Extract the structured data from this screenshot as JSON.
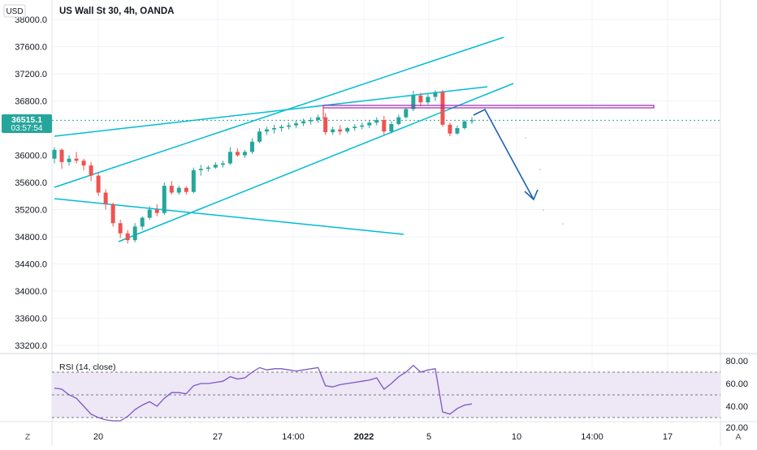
{
  "header": {
    "currency": "USD",
    "symbol_title": "US Wall St 30, 4h, OANDA"
  },
  "price_badge": {
    "price": "36515.1",
    "countdown": "03:57:54",
    "color": "#26a69a"
  },
  "rsi": {
    "label": "RSI (14, close)",
    "levels": [
      30,
      70
    ],
    "color": "#7e57c2",
    "band_color": "#ede7f6",
    "y_ticks": [
      "80.00",
      "60.00",
      "40.00",
      "20.00"
    ]
  },
  "footer": {
    "left_button": "Z",
    "right_button": "A"
  },
  "colors": {
    "up": "#26a69a",
    "down": "#ef5350",
    "trendline": "#00bcd4",
    "arrow": "#1e5fb4",
    "resistance": "#9c27b0",
    "grid": "#f0f3fa"
  },
  "chart_data": {
    "type": "candlestick",
    "title": "US Wall St 30, 4h, OANDA",
    "ylim": [
      33000,
      38200
    ],
    "y_ticks": [
      "38000.0",
      "37600.0",
      "37200.0",
      "36800.0",
      "36400.0",
      "36000.0",
      "35600.0",
      "35200.0",
      "34800.0",
      "34400.0",
      "34000.0",
      "33600.0",
      "33200.0"
    ],
    "x_ticks": [
      "20",
      "27",
      "14:00",
      "2022",
      "5",
      "10",
      "14:00",
      "17"
    ],
    "last_price": 36515.1,
    "ohlc": [
      [
        35950,
        36120,
        35880,
        36080
      ],
      [
        36080,
        36100,
        35800,
        35900
      ],
      [
        35900,
        36000,
        35850,
        35950
      ],
      [
        35950,
        36050,
        35880,
        35920
      ],
      [
        35920,
        35950,
        35780,
        35850
      ],
      [
        35850,
        35900,
        35620,
        35700
      ],
      [
        35700,
        35750,
        35400,
        35450
      ],
      [
        35450,
        35500,
        35200,
        35280
      ],
      [
        35280,
        35300,
        34950,
        35000
      ],
      [
        35000,
        35050,
        34780,
        34850
      ],
      [
        34850,
        34900,
        34700,
        34750
      ],
      [
        34750,
        35000,
        34720,
        34950
      ],
      [
        34950,
        35100,
        34900,
        35080
      ],
      [
        35080,
        35250,
        35050,
        35200
      ],
      [
        35200,
        35280,
        35100,
        35150
      ],
      [
        35150,
        35600,
        35120,
        35550
      ],
      [
        35550,
        35620,
        35420,
        35450
      ],
      [
        35450,
        35550,
        35420,
        35520
      ],
      [
        35520,
        35540,
        35420,
        35460
      ],
      [
        35460,
        35820,
        35440,
        35780
      ],
      [
        35780,
        35860,
        35700,
        35800
      ],
      [
        35800,
        35850,
        35760,
        35820
      ],
      [
        35820,
        35900,
        35800,
        35860
      ],
      [
        35860,
        35920,
        35820,
        35880
      ],
      [
        35880,
        36120,
        35860,
        36050
      ],
      [
        36050,
        36100,
        35980,
        36000
      ],
      [
        36000,
        36080,
        35960,
        36050
      ],
      [
        36050,
        36250,
        36020,
        36200
      ],
      [
        36200,
        36400,
        36180,
        36350
      ],
      [
        36350,
        36420,
        36300,
        36380
      ],
      [
        36380,
        36450,
        36320,
        36400
      ],
      [
        36400,
        36450,
        36350,
        36420
      ],
      [
        36420,
        36480,
        36380,
        36440
      ],
      [
        36440,
        36520,
        36400,
        36470
      ],
      [
        36470,
        36540,
        36430,
        36500
      ],
      [
        36500,
        36560,
        36450,
        36520
      ],
      [
        36520,
        36600,
        36480,
        36560
      ],
      [
        36560,
        36620,
        36300,
        36340
      ],
      [
        36340,
        36420,
        36300,
        36380
      ],
      [
        36380,
        36440,
        36300,
        36350
      ],
      [
        36350,
        36420,
        36320,
        36400
      ],
      [
        36400,
        36460,
        36360,
        36420
      ],
      [
        36420,
        36480,
        36380,
        36440
      ],
      [
        36440,
        36520,
        36400,
        36480
      ],
      [
        36480,
        36560,
        36440,
        36520
      ],
      [
        36520,
        36580,
        36300,
        36350
      ],
      [
        36350,
        36500,
        36320,
        36460
      ],
      [
        36460,
        36600,
        36440,
        36560
      ],
      [
        36560,
        36700,
        36540,
        36680
      ],
      [
        36680,
        36950,
        36650,
        36880
      ],
      [
        36880,
        36920,
        36720,
        36780
      ],
      [
        36780,
        36900,
        36750,
        36860
      ],
      [
        36860,
        36960,
        36800,
        36930
      ],
      [
        36930,
        36960,
        36420,
        36450
      ],
      [
        36450,
        36480,
        36280,
        36320
      ],
      [
        36320,
        36440,
        36300,
        36400
      ],
      [
        36400,
        36520,
        36380,
        36500
      ],
      [
        36500,
        36560,
        36460,
        36515
      ]
    ],
    "rsi_values": [
      56,
      55,
      50,
      47,
      40,
      33,
      30,
      28,
      24,
      26,
      31,
      37,
      41,
      44,
      40,
      47,
      52,
      52,
      51,
      58,
      60,
      60,
      61,
      62,
      66,
      64,
      65,
      70,
      74,
      72,
      73,
      73,
      72,
      71,
      72,
      73,
      74,
      58,
      57,
      59,
      60,
      61,
      62,
      63,
      65,
      55,
      60,
      66,
      70,
      76,
      70,
      72,
      73,
      35,
      33,
      38,
      41,
      42
    ],
    "annotations": [
      {
        "type": "resistance-zone",
        "price": 36695
      },
      {
        "type": "projection-arrow",
        "direction": "down"
      }
    ]
  }
}
